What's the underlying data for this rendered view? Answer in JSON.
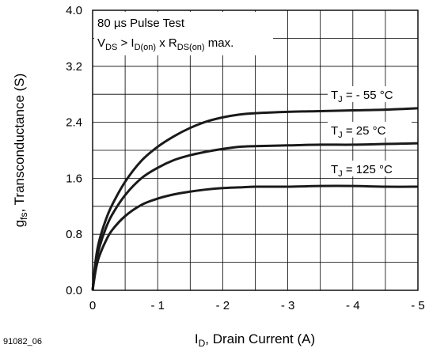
{
  "figure_id": "91082_06",
  "chart_data": {
    "type": "line",
    "title": "",
    "x_axis": {
      "label_main": "I",
      "label_sub": "D",
      "label_rest": ", Drain Current (A)",
      "range": [
        0,
        -5
      ],
      "ticks": [
        "0",
        "- 1",
        "- 2",
        "- 3",
        "- 4",
        "- 5"
      ],
      "tick_values": [
        0,
        -1,
        -2,
        -3,
        -4,
        -5
      ],
      "minor_step": 0.5
    },
    "y_axis": {
      "label_main": "g",
      "label_sub": "fs",
      "label_rest": ", Transconductance (S)",
      "range": [
        0,
        4.0
      ],
      "ticks": [
        "0.0",
        "0.8",
        "1.6",
        "2.4",
        "3.2",
        "4.0"
      ],
      "tick_values": [
        0,
        0.8,
        1.6,
        2.4,
        3.2,
        4.0
      ],
      "minor_step": 0.4
    },
    "grid": true,
    "test_condition": {
      "line1": "80 µs Pulse Test",
      "line2": {
        "v": "V",
        "v_sub": "DS",
        "mid": " > I",
        "i_sub": "D(on)",
        "x": " x R",
        "r_sub": "DS(on)",
        "end": " max."
      }
    },
    "series": [
      {
        "name": "TJ = - 55 °C",
        "label_prefix": "T",
        "label_sub": "J",
        "label_value": " = - 55 °C",
        "x": [
          0,
          -0.05,
          -0.1,
          -0.2,
          -0.3,
          -0.5,
          -0.75,
          -1.0,
          -1.25,
          -1.5,
          -1.75,
          -2.0,
          -2.25,
          -2.5,
          -3.0,
          -3.5,
          -4.0,
          -4.5,
          -5.0
        ],
        "y": [
          0,
          0.45,
          0.7,
          1.0,
          1.22,
          1.55,
          1.85,
          2.05,
          2.2,
          2.32,
          2.41,
          2.47,
          2.51,
          2.53,
          2.55,
          2.56,
          2.57,
          2.58,
          2.6
        ]
      },
      {
        "name": "TJ = 25 °C",
        "label_prefix": "T",
        "label_sub": "J",
        "label_value": " = 25 °C",
        "x": [
          0,
          -0.05,
          -0.1,
          -0.2,
          -0.3,
          -0.5,
          -0.75,
          -1.0,
          -1.25,
          -1.5,
          -1.75,
          -2.0,
          -2.25,
          -2.5,
          -3.0,
          -3.5,
          -4.0,
          -4.5,
          -5.0
        ],
        "y": [
          0,
          0.38,
          0.6,
          0.88,
          1.08,
          1.36,
          1.6,
          1.75,
          1.86,
          1.93,
          1.98,
          2.02,
          2.05,
          2.06,
          2.07,
          2.08,
          2.08,
          2.09,
          2.1
        ]
      },
      {
        "name": "TJ = 125 °C",
        "label_prefix": "T",
        "label_sub": "J",
        "label_value": " = 125 °C",
        "x": [
          0,
          -0.05,
          -0.1,
          -0.2,
          -0.3,
          -0.5,
          -0.75,
          -1.0,
          -1.25,
          -1.5,
          -1.75,
          -2.0,
          -2.25,
          -2.5,
          -3.0,
          -3.5,
          -4.0,
          -4.5,
          -5.0
        ],
        "y": [
          0,
          0.3,
          0.48,
          0.7,
          0.86,
          1.06,
          1.22,
          1.31,
          1.37,
          1.41,
          1.44,
          1.46,
          1.47,
          1.48,
          1.48,
          1.49,
          1.49,
          1.48,
          1.48
        ]
      }
    ]
  }
}
